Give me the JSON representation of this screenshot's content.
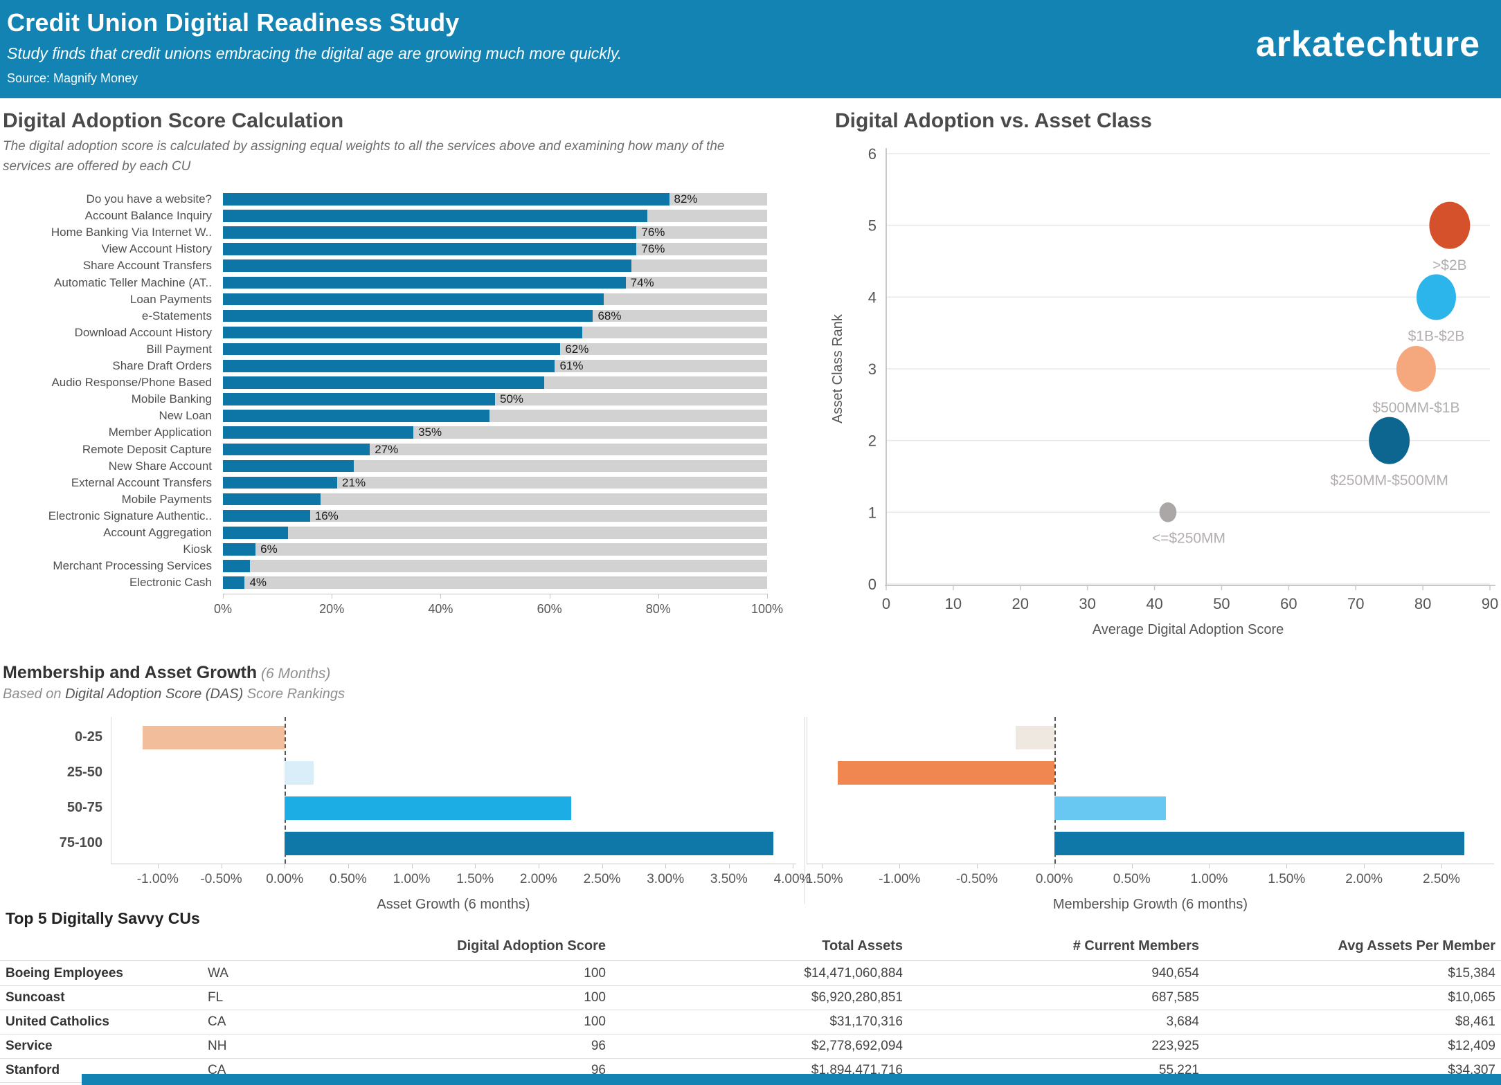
{
  "header": {
    "title": "Credit Union Digitial Readiness Study",
    "subtitle": "Study finds that credit unions embracing the digital age are growing much more quickly.",
    "source": "Source: Magnify Money",
    "logo": "arkatechture"
  },
  "growth_section": {
    "title": "Membership and Asset Growth",
    "title_suffix": " (6 Months)",
    "subtitle_prefix": "Based on ",
    "subtitle_em": "Digital Adoption Score (DAS)",
    "subtitle_suffix": " Score Rankings"
  },
  "chart_data": [
    {
      "id": "services",
      "type": "bar",
      "orientation": "horizontal",
      "title": "Digital Adoption Score Calculation",
      "subtitle": "The digital adoption score is calculated by assigning equal weights to all the services above and examining how many of the services are offered by each CU",
      "categories": [
        "Do you have a website?",
        "Account Balance Inquiry",
        "Home Banking Via Internet W..",
        "View Account History",
        "Share Account Transfers",
        "Automatic Teller Machine (AT..",
        "Loan Payments",
        "e-Statements",
        "Download Account History",
        "Bill Payment",
        "Share Draft Orders",
        "Audio Response/Phone Based",
        "Mobile Banking",
        "New Loan",
        "Member Application",
        "Remote Deposit Capture",
        "New Share Account",
        "External Account Transfers",
        "Mobile Payments",
        "Electronic Signature Authentic..",
        "Account Aggregation",
        "Kiosk",
        "Merchant Processing Services",
        "Electronic Cash"
      ],
      "values": [
        82,
        78,
        76,
        76,
        75,
        74,
        70,
        68,
        66,
        62,
        61,
        59,
        50,
        49,
        35,
        27,
        24,
        21,
        18,
        16,
        12,
        6,
        5,
        4
      ],
      "labels": [
        "82%",
        "",
        "76%",
        "76%",
        "",
        "74%",
        "",
        "68%",
        "",
        "62%",
        "61%",
        "",
        "50%",
        "",
        "35%",
        "27%",
        "",
        "21%",
        "",
        "16%",
        "",
        "6%",
        "",
        "4%"
      ],
      "xlim": [
        0,
        100
      ],
      "tick_values": [
        0,
        20,
        40,
        60,
        80,
        100
      ],
      "tick_labels": [
        "0%",
        "20%",
        "40%",
        "60%",
        "80%",
        "100%"
      ],
      "bar_color": "#0E76A6",
      "track_color": "#D2D2D2"
    },
    {
      "id": "asset_class",
      "type": "scatter",
      "title": "Digital Adoption vs. Asset Class",
      "xlabel": "Average Digital Adoption Score",
      "ylabel": "Asset Class Rank",
      "xlim": [
        0,
        90
      ],
      "ylim": [
        0,
        6
      ],
      "x_ticks": [
        0,
        10,
        20,
        30,
        40,
        50,
        60,
        70,
        80,
        90
      ],
      "y_ticks": [
        0,
        1,
        2,
        3,
        4,
        5,
        6
      ],
      "points": [
        {
          "label": ">$2B",
          "x": 84,
          "y": 5,
          "r": 31,
          "color": "#D4512B"
        },
        {
          "label": "$1B-$2B",
          "x": 82,
          "y": 4,
          "r": 30,
          "color": "#2CB5EB"
        },
        {
          "label": "$500MM-$1B",
          "x": 79,
          "y": 3,
          "r": 30,
          "color": "#F5A87D"
        },
        {
          "label": "$250MM-$500MM",
          "x": 75,
          "y": 2,
          "r": 31,
          "color": "#0D6690"
        },
        {
          "label": "<=$250MM",
          "x": 42,
          "y": 1,
          "r": 13,
          "color": "#ACA7A7"
        }
      ]
    },
    {
      "id": "asset_growth",
      "type": "bar",
      "orientation": "horizontal",
      "xlabel": "Asset Growth (6 months)",
      "categories": [
        "0-25",
        "25-50",
        "50-75",
        "75-100"
      ],
      "values": [
        -1.12,
        0.23,
        2.26,
        3.85
      ],
      "colors": [
        "#F2BD9B",
        "#D9EEF9",
        "#1CADE4",
        "#0F78A8"
      ],
      "xlim": [
        -1.37,
        4.03
      ],
      "tick_values": [
        -1.0,
        -0.5,
        0,
        0.5,
        1.0,
        1.5,
        2.0,
        2.5,
        3.0,
        3.5,
        4.0
      ],
      "tick_labels": [
        "-1.00%",
        "-0.50%",
        "0.00%",
        "0.50%",
        "1.00%",
        "1.50%",
        "2.00%",
        "2.50%",
        "3.00%",
        "3.50%",
        "4.00%"
      ]
    },
    {
      "id": "membership_growth",
      "type": "bar",
      "orientation": "horizontal",
      "xlabel": "Membership Growth (6 months)",
      "categories": [
        "0-25",
        "25-50",
        "50-75",
        "75-100"
      ],
      "values": [
        -0.25,
        -1.4,
        0.72,
        2.65
      ],
      "colors": [
        "#EFE8E1",
        "#F08650",
        "#69C8F1",
        "#0F78A8"
      ],
      "xlim": [
        -1.6,
        2.84
      ],
      "tick_values": [
        -1.5,
        -1.0,
        -0.5,
        0,
        0.5,
        1.0,
        1.5,
        2.0,
        2.5
      ],
      "tick_labels": [
        "-1.50%",
        "-1.00%",
        "-0.50%",
        "0.00%",
        "0.50%",
        "1.00%",
        "1.50%",
        "2.00%",
        "2.50%"
      ]
    }
  ],
  "table": {
    "title": "Top 5 Digitally Savvy CUs",
    "columns": [
      "",
      "",
      "Digital Adoption Score",
      "Total Assets",
      "# Current Members",
      "Avg Assets Per Member"
    ],
    "rows": [
      [
        "Boeing Employees",
        "WA",
        "100",
        "$14,471,060,884",
        "940,654",
        "$15,384"
      ],
      [
        "Suncoast",
        "FL",
        "100",
        "$6,920,280,851",
        "687,585",
        "$10,065"
      ],
      [
        "United Catholics",
        "CA",
        "100",
        "$31,170,316",
        "3,684",
        "$8,461"
      ],
      [
        "Service",
        "NH",
        "96",
        "$2,778,692,094",
        "223,925",
        "$12,409"
      ],
      [
        "Stanford",
        "CA",
        "96",
        "$1,894,471,716",
        "55,221",
        "$34,307"
      ]
    ]
  }
}
